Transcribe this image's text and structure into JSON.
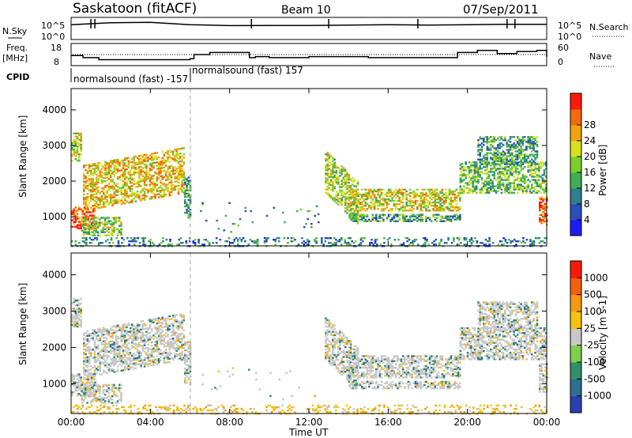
{
  "header": {
    "station": "Saskatoon (fitACF)",
    "beam": "Beam 10",
    "date": "07/Sep/2011"
  },
  "top_labels": {
    "nsky": "N.Sky",
    "freq_line1": "Freq.",
    "freq_line2": "[MHz]",
    "cpid": "CPID",
    "nsearch": "N.Search",
    "nave": "Nave"
  },
  "cpid_annotations": [
    "normalsound (fast) -157",
    "normalsound (fast) 157"
  ],
  "x_axis": {
    "label": "Time UT",
    "ticks": [
      "00:00",
      "04:00",
      "08:00",
      "12:00",
      "16:00",
      "20:00",
      "00:00"
    ]
  },
  "colorbars": {
    "power": {
      "label": "Power [dB]",
      "ticks": [
        "4",
        "8",
        "12",
        "16",
        "20",
        "24",
        "28"
      ],
      "colors": [
        "#1c1cff",
        "#2a4fb8",
        "#2f7f8f",
        "#3fae55",
        "#7ccf2a",
        "#d7e01c",
        "#f3a20e",
        "#f36a0c",
        "#ff1a08"
      ]
    },
    "velocity": {
      "label": "Velocity [m s-1]",
      "ticks": [
        "1000",
        "500",
        "100",
        "25",
        "-25",
        "-100",
        "-500",
        "-1000"
      ],
      "colors": [
        "#2a3fb0",
        "#2f6f8f",
        "#2f8f6a",
        "#7ed04a",
        "#c8c8c8",
        "#f3c30e",
        "#f39a0e",
        "#f36010",
        "#ff1a08"
      ]
    }
  },
  "chart_data": [
    {
      "type": "line",
      "title": "N.Sky",
      "ylim_label": [
        "10^0",
        "10^5"
      ],
      "x": [
        0,
        2,
        4,
        6,
        8,
        10,
        12,
        14,
        16,
        18,
        20,
        22,
        24
      ],
      "series": [
        {
          "name": "N.Sky",
          "values": [
            0.7,
            0.8,
            0.82,
            0.7,
            0.65,
            0.66,
            0.66,
            0.68,
            0.7,
            0.68,
            0.7,
            0.72,
            0.72
          ]
        }
      ]
    },
    {
      "type": "line",
      "title": "Freq. [MHz]",
      "ylim": [
        8,
        18
      ],
      "yticks": [
        "8",
        "18"
      ],
      "x": [
        0,
        0.6,
        1.4,
        6,
        6.2,
        7,
        9,
        9.3,
        10,
        12,
        13,
        15,
        19.5,
        20.5,
        21.5,
        22.5,
        23.5,
        24
      ],
      "values": [
        12.5,
        11.5,
        10.5,
        11,
        13,
        14,
        11.5,
        12,
        11.5,
        12,
        12,
        11.5,
        14,
        15,
        13.5,
        14.5,
        15,
        12
      ]
    },
    {
      "type": "heatmap",
      "title": "Power [dB]",
      "xlabel": "Time UT",
      "ylabel": "Slant Range [km]",
      "xlim": [
        0,
        24
      ],
      "ylim": [
        180,
        4600
      ],
      "yticks": [
        1000,
        2000,
        3000,
        4000
      ],
      "clim": [
        0,
        32
      ]
    },
    {
      "type": "heatmap",
      "title": "Velocity [m s-1]",
      "xlabel": "Time UT",
      "ylabel": "Slant Range [km]",
      "xlim": [
        0,
        24
      ],
      "ylim": [
        180,
        4600
      ],
      "yticks": [
        1000,
        2000,
        3000,
        4000
      ],
      "clim": [
        -1000,
        1000
      ]
    }
  ]
}
